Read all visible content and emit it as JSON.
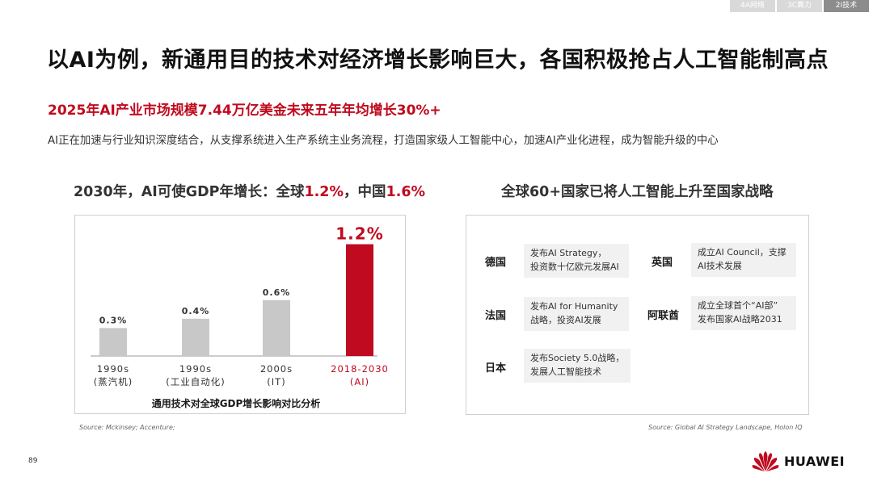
{
  "tabs": [
    {
      "label": "4A网络",
      "active": false
    },
    {
      "label": "3C算力",
      "active": false
    },
    {
      "label": "2I技术",
      "active": true
    }
  ],
  "title": "以AI为例，新通用目的技术对经济增长影响巨大，各国积极抢占人工智能制高点",
  "subtitle": "2025年AI产业市场规模7.44万亿美金未来五年年均增长30%+",
  "description": "AI正在加速与行业知识深度结合，从支撑系统进入生产系统主业务流程，打造国家级人工智能中心，加速AI产业化进程，成为智能升级的中心",
  "left_panel": {
    "title_prefix": "2030年，AI可使GDP年增长：全球",
    "title_global": "1.2%",
    "title_sep": "，中国",
    "title_china": "1.6%"
  },
  "chart_data": {
    "type": "bar",
    "title": "",
    "xlabel": "通用技术对全球GDP增长影响对比分析",
    "ylabel": "",
    "ylim": [
      0,
      1.3
    ],
    "categories": [
      {
        "period": "1990s",
        "tech": "(蒸汽机)"
      },
      {
        "period": "1990s",
        "tech": "(工业自动化)"
      },
      {
        "period": "2000s",
        "tech": "(IT)"
      },
      {
        "period": "2018-2030",
        "tech": "(AI)"
      }
    ],
    "values": [
      0.3,
      0.4,
      0.6,
      1.2
    ],
    "labels": [
      "0.3%",
      "0.4%",
      "0.6%",
      "1.2%"
    ],
    "highlight_index": 3,
    "colors": {
      "normal": "#c8c8c8",
      "highlight": "#c00a1f",
      "normal_label": "#333333"
    }
  },
  "right_panel": {
    "title": "全球60+国家已将人工智能上升至国家战略",
    "countries": [
      {
        "name": "德国",
        "lines": [
          "发布AI Strategy，",
          "投资数十亿欧元发展AI"
        ]
      },
      {
        "name": "英国",
        "lines": [
          "成立AI Council，支撑",
          "AI技术发展"
        ]
      },
      {
        "name": "法国",
        "lines": [
          "发布AI for Humanity",
          "战略，投资AI发展"
        ]
      },
      {
        "name": "阿联酋",
        "lines": [
          "成立全球首个“AI部”",
          "发布国家AI战略2031"
        ]
      },
      {
        "name": "日本",
        "lines": [
          "发布Society 5.0战略，",
          "发展人工智能技术"
        ]
      }
    ]
  },
  "sources": {
    "left": "Source:  Mckinsey;  Accenture;",
    "right": "Source:  Global  AI  Strategy  Landscape,  Holon  IQ"
  },
  "page_number": "89",
  "brand": {
    "name": "HUAWEI",
    "color": "#c00a1f"
  }
}
